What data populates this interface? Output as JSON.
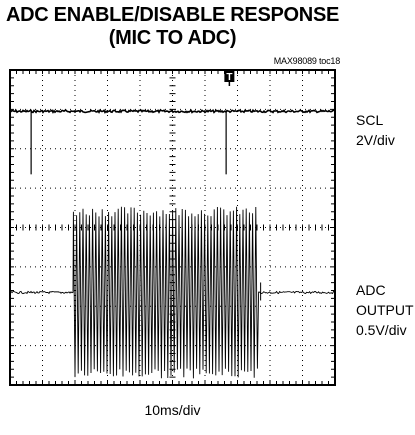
{
  "title_line1": "ADC ENABLE/DISABLE RESPONSE",
  "title_line2": "(MIC TO ADC)",
  "figure_tag": "MAX98089 toc18",
  "trigger_marker": "T",
  "channels": [
    {
      "name_line1": "SCL",
      "name_line2": "2V/div",
      "name_line3": ""
    },
    {
      "name_line1": "ADC",
      "name_line2": "OUTPUT",
      "name_line3": "0.5V/div"
    }
  ],
  "x_scale": "10ms/div",
  "colors": {
    "trace": "#000000",
    "grid": "#000000",
    "background": "#ffffff"
  },
  "chart_data": {
    "type": "line",
    "title": "ADC ENABLE/DISABLE RESPONSE (MIC TO ADC)",
    "grid": true,
    "x_divisions": 10,
    "y_divisions": 8,
    "x_per_div": "10ms",
    "xlim": [
      0,
      100
    ],
    "xunit": "ms",
    "series": [
      {
        "name": "SCL",
        "scale": "2V/div",
        "baseline_div": 6.95,
        "events_ms": [
          6.5,
          66.5
        ],
        "pulse_depth_div": -1.6
      },
      {
        "name": "ADC OUTPUT",
        "scale": "0.5V/div",
        "baseline_div": 2.35,
        "burst_start_ms": 19.5,
        "burst_end_ms": 76.5,
        "burst_peak_div": 2.1,
        "burst_ripple_div": 0.2
      }
    ],
    "trigger_ms": 67.5
  }
}
